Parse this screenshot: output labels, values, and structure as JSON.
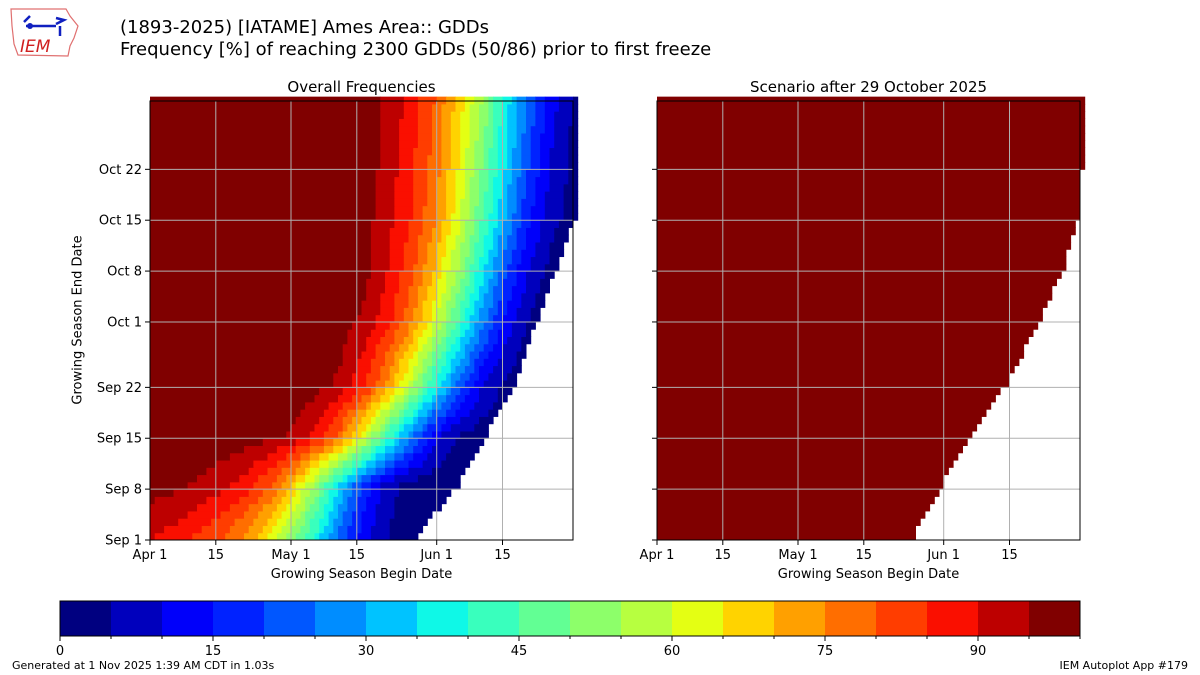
{
  "header": {
    "title_line1": "(1893-2025) [IATAME] Ames Area:: GDDs",
    "title_line2": "Frequency [%] of reaching 2300 GDDs (50/86) prior to first freeze",
    "logo_text": "IEM"
  },
  "footer": {
    "generated": "Generated at 1 Nov 2025 1:39 AM CDT in 1.03s",
    "app": "IEM Autoplot App #179"
  },
  "chart_data": [
    {
      "type": "heatmap",
      "title": "Overall Frequencies",
      "xlabel": "Growing Season Begin Date",
      "ylabel": "Growing Season End Date",
      "xlim": [
        "Apr 1",
        "Jun 30"
      ],
      "ylim": [
        "Sep 1",
        "Oct 31"
      ],
      "xticks": [
        "Apr 1",
        "15",
        "May 1",
        "15",
        "Jun 1",
        "15"
      ],
      "yticks": [
        "Sep 1",
        "Sep 8",
        "Sep 15",
        "Sep 22",
        "Oct 1",
        "Oct 8",
        "Oct 15",
        "Oct 22"
      ],
      "grid": true,
      "begin_dates": [
        "Apr 1",
        "Apr 6",
        "Apr 11",
        "Apr 16",
        "Apr 21",
        "Apr 26",
        "May 1",
        "May 6",
        "May 11",
        "May 16",
        "May 21",
        "May 26",
        "May 31",
        "Jun 5",
        "Jun 10",
        "Jun 15",
        "Jun 20",
        "Jun 25",
        "Jun 30"
      ],
      "end_dates": [
        "Sep 1",
        "Sep 8",
        "Sep 15",
        "Sep 22",
        "Oct 1",
        "Oct 8",
        "Oct 15",
        "Oct 22",
        "Oct 31"
      ],
      "valid_through": [
        "May 27",
        "Jun 5",
        "Jun 11",
        "Jun 17",
        "Jun 22",
        "Jun 26",
        "Jun 30",
        "Jun 30",
        "Jun 30"
      ],
      "values": [
        [
          90,
          88,
          84,
          80,
          74,
          64,
          52,
          38,
          22,
          12,
          5,
          2,
          null,
          null,
          null,
          null,
          null,
          null,
          null
        ],
        [
          97,
          96,
          94,
          91,
          87,
          80,
          68,
          52,
          34,
          18,
          7,
          3,
          1,
          null,
          null,
          null,
          null,
          null,
          null
        ],
        [
          100,
          100,
          100,
          99,
          98,
          97,
          94,
          88,
          78,
          62,
          44,
          27,
          13,
          5,
          2,
          null,
          null,
          null,
          null
        ],
        [
          100,
          100,
          100,
          100,
          99,
          99,
          99,
          97,
          94,
          86,
          74,
          58,
          40,
          24,
          11,
          4,
          null,
          null,
          null
        ],
        [
          100,
          100,
          100,
          100,
          100,
          100,
          99,
          99,
          97,
          94,
          87,
          77,
          62,
          45,
          28,
          14,
          5,
          null,
          null
        ],
        [
          100,
          100,
          100,
          100,
          100,
          100,
          100,
          99,
          99,
          97,
          90,
          82,
          70,
          55,
          38,
          22,
          10,
          3,
          null
        ],
        [
          100,
          100,
          100,
          100,
          100,
          100,
          100,
          100,
          99,
          97,
          92,
          85,
          76,
          62,
          46,
          30,
          16,
          7,
          2
        ],
        [
          100,
          100,
          100,
          100,
          100,
          100,
          100,
          100,
          99,
          98,
          93,
          86,
          78,
          65,
          50,
          35,
          20,
          9,
          3
        ],
        [
          100,
          100,
          100,
          100,
          100,
          100,
          100,
          100,
          99,
          98,
          94,
          88,
          80,
          68,
          55,
          38,
          24,
          12,
          4
        ]
      ]
    },
    {
      "type": "heatmap",
      "title": "Scenario after 29 October 2025",
      "xlabel": "Growing Season Begin Date",
      "xlim": [
        "Apr 1",
        "Jun 30"
      ],
      "ylim": [
        "Sep 1",
        "Oct 31"
      ],
      "xticks": [
        "Apr 1",
        "15",
        "May 1",
        "15",
        "Jun 1",
        "15"
      ],
      "grid": true,
      "end_dates": [
        "Sep 1",
        "Sep 8",
        "Sep 15",
        "Sep 22",
        "Oct 1",
        "Oct 8",
        "Oct 15",
        "Oct 22",
        "Oct 31"
      ],
      "valid_through": [
        "May 25",
        "May 31",
        "Jun 6",
        "Jun 14",
        "Jun 21",
        "Jun 26",
        "Jun 29",
        "Jun 30",
        "Jun 30"
      ],
      "value": 100
    }
  ],
  "colorbar": {
    "ticks": [
      "0",
      "15",
      "30",
      "45",
      "60",
      "75",
      "90"
    ],
    "range": [
      0,
      100
    ],
    "step": 5,
    "colors": [
      "#000080",
      "#0000bd",
      "#0000fa",
      "#0022ff",
      "#0057ff",
      "#008dff",
      "#00c3ff",
      "#0ff8e7",
      "#39ffbd",
      "#62ff94",
      "#8dff6a",
      "#b7ff40",
      "#e4ff13",
      "#ffd300",
      "#ffa000",
      "#ff6e00",
      "#ff3d00",
      "#fa0f00",
      "#bd0000",
      "#800000"
    ]
  }
}
